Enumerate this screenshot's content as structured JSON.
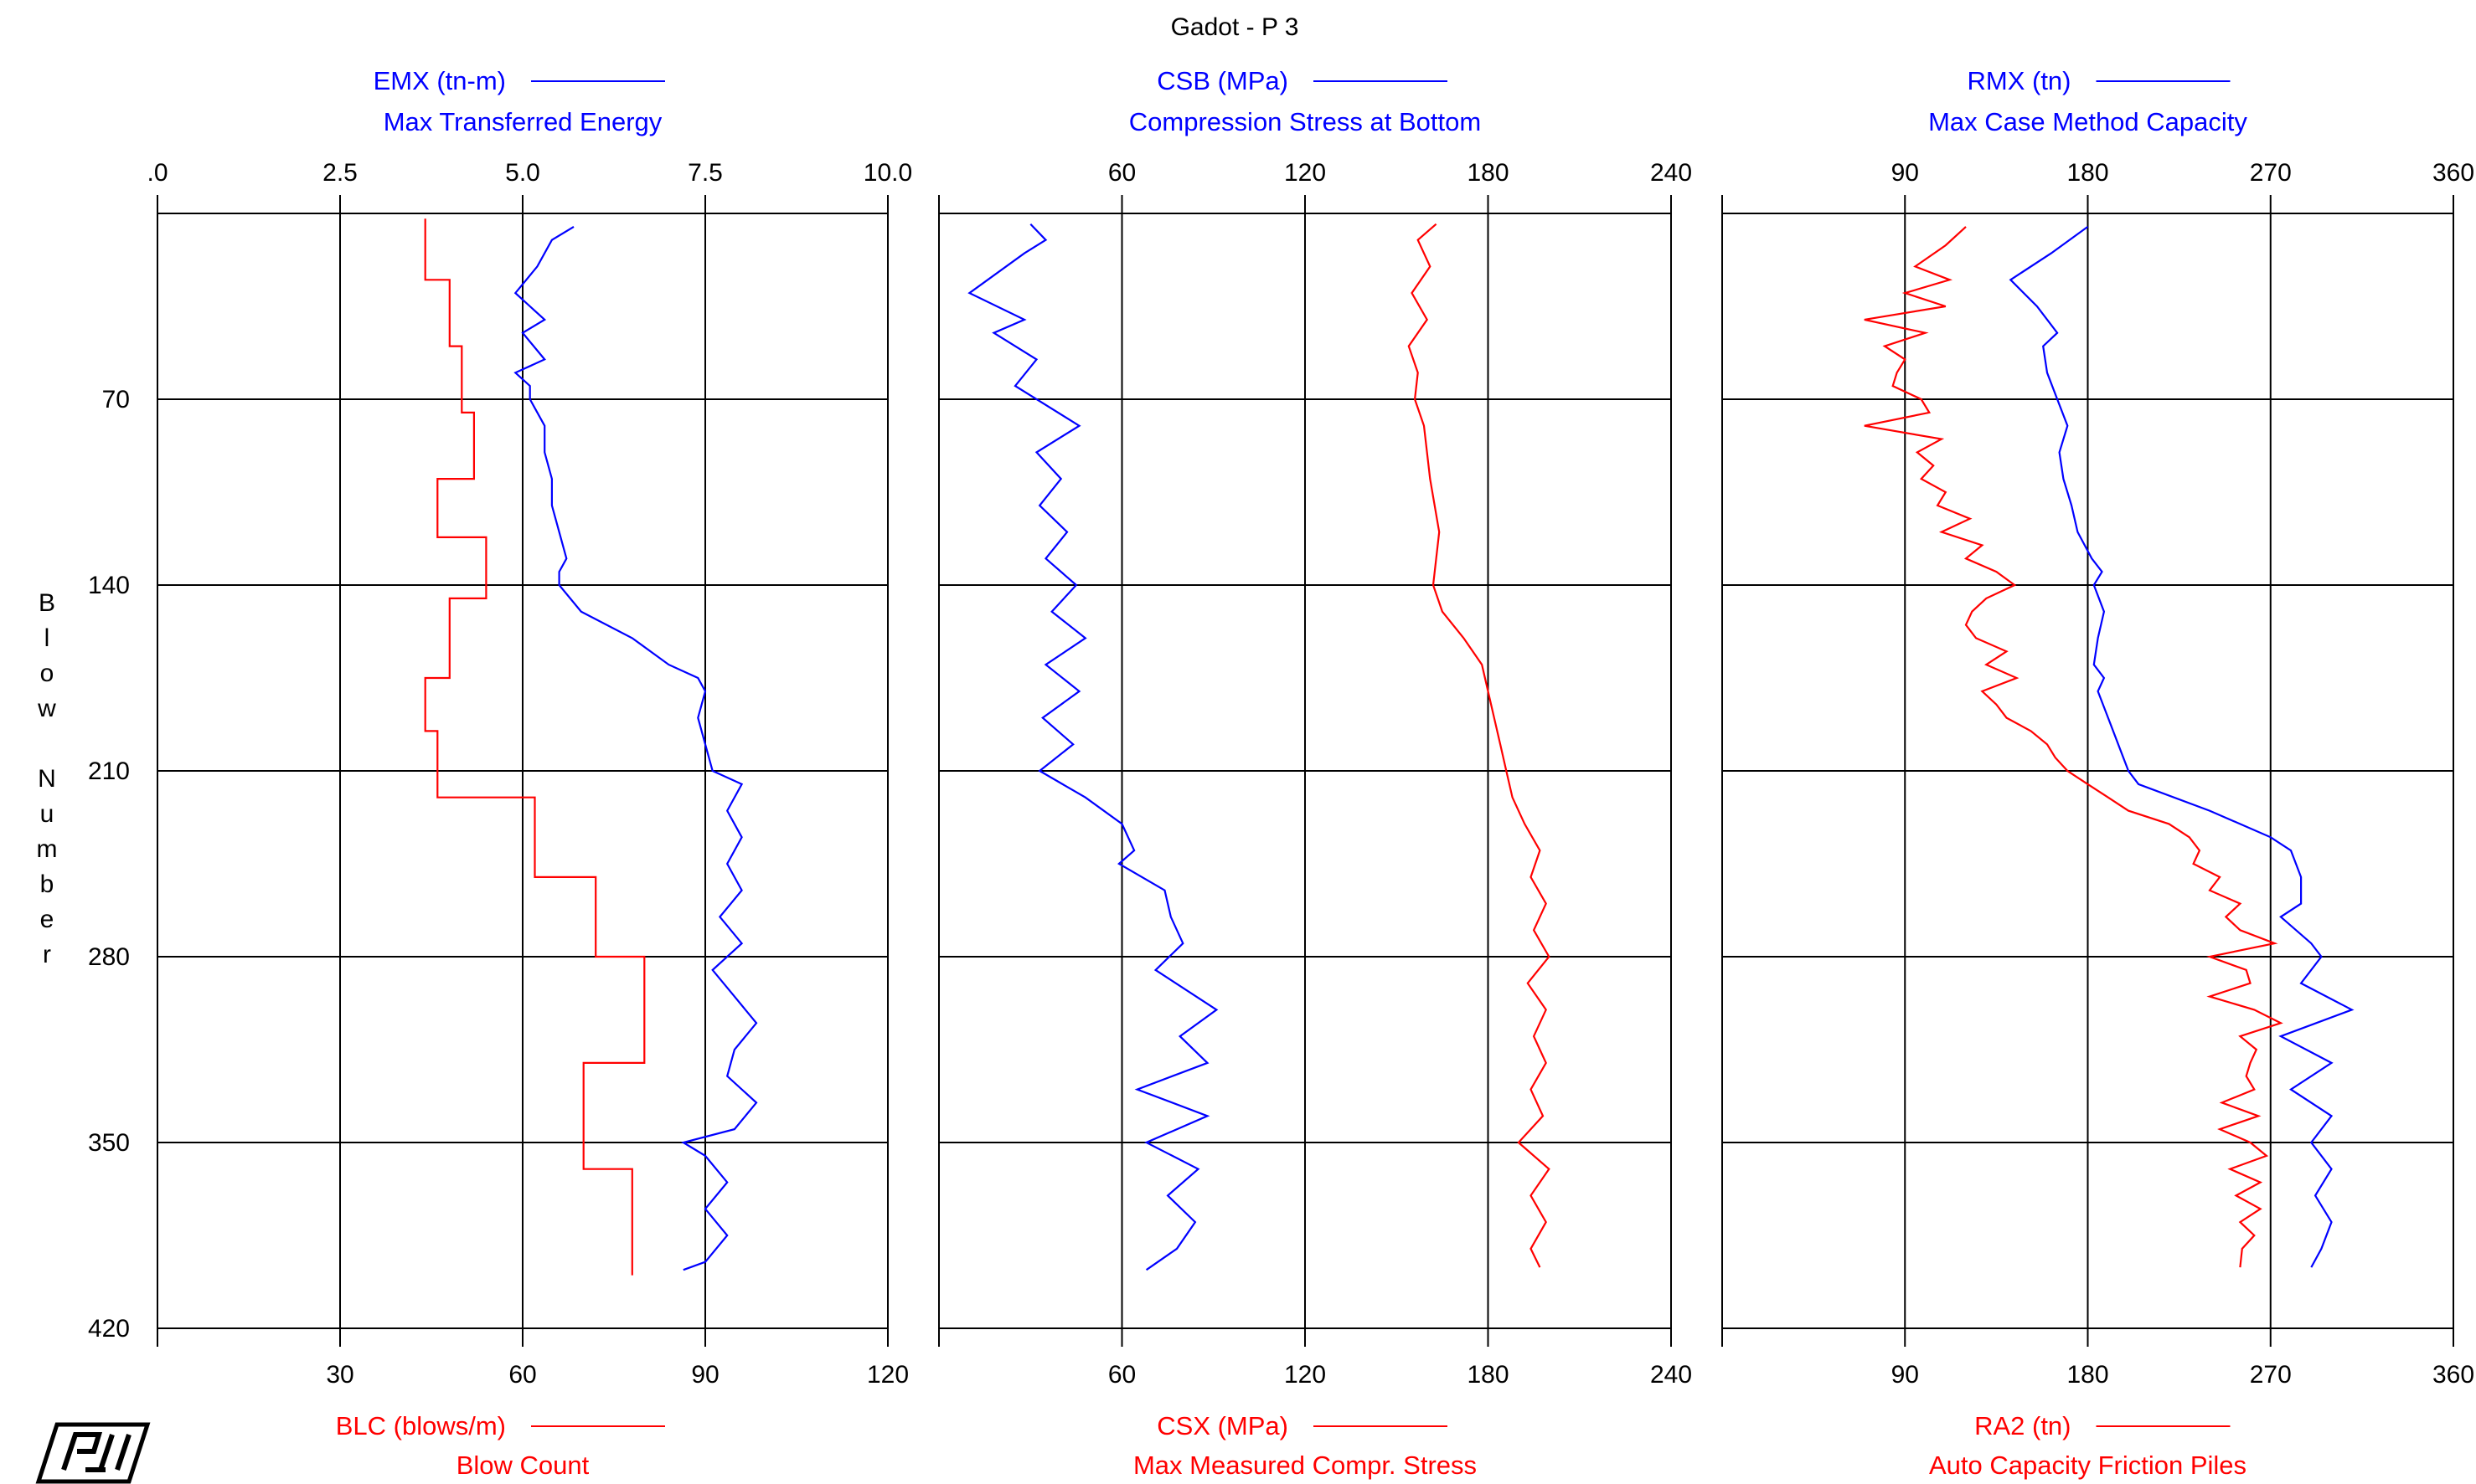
{
  "title": "Gadot - P 3",
  "ylabel": "Blow Number",
  "logo_text": "PDI",
  "colors": {
    "blue": "#0000ff",
    "red": "#ff0000",
    "grid": "#000000"
  },
  "chart_data": [
    {
      "type": "line",
      "ylabel": "Blow Number",
      "y_ticks": [
        70,
        140,
        210,
        280,
        350,
        420
      ],
      "ylim": [
        0,
        420
      ],
      "top_axis": {
        "ticks": [
          0,
          2.5,
          5.0,
          7.5,
          10.0
        ],
        "tick_labels": [
          ".0",
          "2.5",
          "5.0",
          "7.5",
          "10.0"
        ],
        "range": [
          0,
          10
        ]
      },
      "bottom_axis": {
        "ticks": [
          30,
          60,
          90,
          120
        ],
        "tick_labels": [
          "30",
          "60",
          "90",
          "120"
        ],
        "range": [
          0,
          120
        ]
      },
      "series": [
        {
          "name": "EMX (tn-m)",
          "description": "Max Transferred Energy",
          "color": "#0000ff",
          "axis": "top",
          "y": [
            5,
            10,
            20,
            30,
            35,
            40,
            45,
            55,
            60,
            65,
            70,
            80,
            90,
            100,
            110,
            120,
            130,
            135,
            140,
            150,
            160,
            170,
            175,
            180,
            190,
            200,
            210,
            215,
            225,
            235,
            245,
            255,
            265,
            275,
            285,
            295,
            305,
            315,
            325,
            335,
            345,
            350,
            355,
            365,
            375,
            385,
            395,
            398
          ],
          "x": [
            5.7,
            5.4,
            5.2,
            4.9,
            5.1,
            5.3,
            5.0,
            5.3,
            4.9,
            5.1,
            5.1,
            5.3,
            5.3,
            5.4,
            5.4,
            5.5,
            5.6,
            5.5,
            5.5,
            5.8,
            6.5,
            7.0,
            7.4,
            7.5,
            7.4,
            7.5,
            7.6,
            8.0,
            7.8,
            8.0,
            7.8,
            8.0,
            7.7,
            8.0,
            7.6,
            7.9,
            8.2,
            7.9,
            7.8,
            8.2,
            7.9,
            7.2,
            7.5,
            7.8,
            7.5,
            7.8,
            7.5,
            7.2
          ]
        },
        {
          "name": "BLC (blows/m)",
          "description": "Blow Count",
          "color": "#ff0000",
          "axis": "bottom",
          "y": [
            2,
            25,
            25,
            50,
            50,
            75,
            75,
            100,
            100,
            122,
            122,
            145,
            145,
            175,
            175,
            195,
            195,
            220,
            220,
            250,
            250,
            280,
            280,
            320,
            320,
            360,
            360,
            400
          ],
          "x": [
            44,
            44,
            48,
            48,
            50,
            50,
            52,
            52,
            46,
            46,
            54,
            54,
            48,
            48,
            44,
            44,
            46,
            46,
            62,
            62,
            72,
            72,
            80,
            80,
            70,
            70,
            78,
            78
          ]
        }
      ]
    },
    {
      "type": "line",
      "ylabel": "",
      "y_ticks": [
        70,
        140,
        210,
        280,
        350,
        420
      ],
      "ylim": [
        0,
        420
      ],
      "top_axis": {
        "ticks": [
          60,
          120,
          180,
          240
        ],
        "tick_labels": [
          "60",
          "120",
          "180",
          "240"
        ],
        "range": [
          0,
          240
        ]
      },
      "bottom_axis": {
        "ticks": [
          60,
          120,
          180,
          240
        ],
        "tick_labels": [
          "60",
          "120",
          "180",
          "240"
        ],
        "range": [
          0,
          240
        ]
      },
      "series": [
        {
          "name": "CSB (MPa)",
          "description": "Compression Stress at Bottom",
          "color": "#0000ff",
          "axis": "top",
          "y": [
            4,
            10,
            15,
            30,
            40,
            45,
            55,
            65,
            80,
            90,
            100,
            110,
            120,
            130,
            140,
            150,
            160,
            170,
            180,
            190,
            200,
            210,
            220,
            230,
            240,
            245,
            255,
            265,
            275,
            285,
            300,
            310,
            320,
            330,
            340,
            350,
            360,
            370,
            380,
            390,
            398
          ],
          "x": [
            30,
            35,
            28,
            10,
            28,
            18,
            32,
            25,
            46,
            32,
            40,
            33,
            42,
            35,
            45,
            37,
            48,
            35,
            46,
            34,
            44,
            33,
            48,
            60,
            64,
            59,
            74,
            76,
            80,
            71,
            91,
            79,
            88,
            65,
            88,
            68,
            85,
            75,
            84,
            78,
            68
          ]
        },
        {
          "name": "CSX (MPa)",
          "description": "Max Measured Compr. Stress",
          "color": "#ff0000",
          "axis": "bottom",
          "y": [
            4,
            10,
            20,
            30,
            40,
            50,
            60,
            70,
            80,
            100,
            120,
            140,
            150,
            160,
            170,
            180,
            190,
            200,
            210,
            220,
            230,
            240,
            250,
            260,
            270,
            280,
            290,
            300,
            310,
            320,
            330,
            340,
            350,
            360,
            370,
            380,
            390,
            397
          ],
          "x": [
            163,
            157,
            161,
            155,
            160,
            154,
            157,
            156,
            159,
            161,
            164,
            162,
            165,
            172,
            178,
            180,
            182,
            184,
            186,
            188,
            192,
            197,
            194,
            199,
            195,
            200,
            193,
            199,
            195,
            199,
            194,
            198,
            190,
            200,
            194,
            199,
            194,
            197
          ]
        }
      ]
    },
    {
      "type": "line",
      "ylabel": "",
      "y_ticks": [
        70,
        140,
        210,
        280,
        350,
        420
      ],
      "ylim": [
        0,
        420
      ],
      "top_axis": {
        "ticks": [
          90,
          180,
          270,
          360
        ],
        "tick_labels": [
          "90",
          "180",
          "270",
          "360"
        ],
        "range": [
          0,
          360
        ]
      },
      "bottom_axis": {
        "ticks": [
          90,
          180,
          270,
          360
        ],
        "tick_labels": [
          "90",
          "180",
          "270",
          "360"
        ],
        "range": [
          0,
          360
        ]
      },
      "series": [
        {
          "name": "RMX (tn)",
          "description": "Max Case Method Capacity",
          "color": "#0000ff",
          "axis": "top",
          "y": [
            5,
            15,
            25,
            35,
            45,
            50,
            60,
            70,
            80,
            90,
            100,
            110,
            120,
            130,
            135,
            140,
            150,
            160,
            170,
            175,
            180,
            190,
            200,
            210,
            215,
            225,
            235,
            240,
            250,
            260,
            265,
            275,
            280,
            290,
            300,
            310,
            320,
            330,
            340,
            350,
            360,
            370,
            380,
            390,
            397
          ],
          "x": [
            180,
            162,
            142,
            155,
            165,
            158,
            160,
            165,
            170,
            166,
            168,
            172,
            175,
            182,
            187,
            183,
            188,
            185,
            183,
            188,
            185,
            190,
            195,
            200,
            205,
            240,
            270,
            280,
            285,
            285,
            275,
            290,
            295,
            285,
            310,
            275,
            300,
            280,
            300,
            290,
            300,
            292,
            300,
            295,
            290
          ]
        },
        {
          "name": "RA2 (tn)",
          "description": "Auto Capacity Friction Piles",
          "color": "#ff0000",
          "axis": "bottom",
          "y": [
            5,
            12,
            20,
            25,
            30,
            35,
            40,
            45,
            50,
            55,
            60,
            65,
            70,
            75,
            80,
            85,
            90,
            95,
            100,
            105,
            110,
            115,
            120,
            125,
            130,
            135,
            140,
            145,
            150,
            155,
            160,
            165,
            170,
            175,
            180,
            185,
            190,
            195,
            200,
            205,
            210,
            215,
            220,
            225,
            230,
            235,
            240,
            245,
            250,
            255,
            260,
            265,
            270,
            275,
            280,
            285,
            290,
            295,
            300,
            305,
            310,
            315,
            320,
            325,
            330,
            335,
            340,
            345,
            350,
            355,
            360,
            365,
            370,
            375,
            380,
            385,
            390,
            397
          ],
          "x": [
            120,
            110,
            95,
            112,
            90,
            110,
            70,
            100,
            80,
            90,
            86,
            84,
            98,
            102,
            70,
            108,
            96,
            104,
            98,
            110,
            106,
            122,
            108,
            128,
            120,
            135,
            144,
            130,
            123,
            120,
            125,
            140,
            130,
            145,
            128,
            135,
            140,
            152,
            160,
            164,
            170,
            180,
            190,
            200,
            220,
            230,
            235,
            232,
            245,
            240,
            255,
            248,
            255,
            272,
            240,
            258,
            260,
            240,
            262,
            275,
            255,
            263,
            260,
            258,
            262,
            246,
            264,
            245,
            260,
            268,
            250,
            265,
            253,
            265,
            255,
            262,
            256,
            255
          ]
        }
      ]
    }
  ]
}
